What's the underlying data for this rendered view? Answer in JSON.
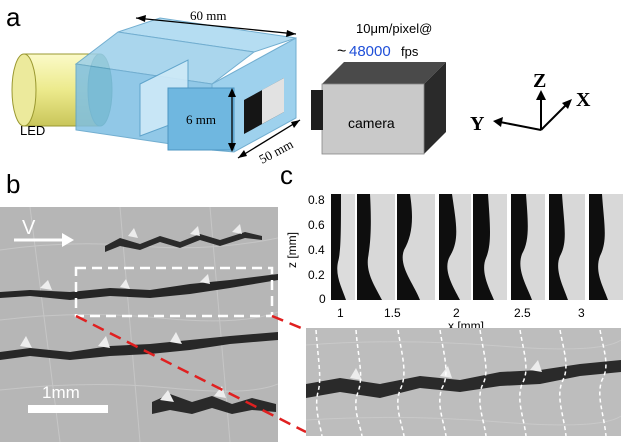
{
  "panels": {
    "a": "a",
    "b": "b",
    "c": "c"
  },
  "setup": {
    "dim_length": "60 mm",
    "dim_height": "6 mm",
    "dim_depth": "50 mm",
    "led_label": "LED",
    "camera_label": "camera",
    "resolution": "10μm/pixel@",
    "tilde": "~",
    "fps_value": "48000",
    "fps_unit": "fps"
  },
  "axes3d": {
    "z": "Z",
    "x": "X",
    "y": "Y"
  },
  "panel_b": {
    "velocity_label": "V",
    "scale_label": "1mm"
  },
  "panel_c": {
    "y_axis_label": "z [mm]",
    "y_ticks": [
      "0.8",
      "0.6",
      "0.4",
      "0.2",
      "0"
    ],
    "x_axis_label": "x [mm]",
    "x_ticks": [
      "1",
      "1.5",
      "2",
      "2.5",
      "3"
    ]
  },
  "colors": {
    "box_fill": "#8cc8e8",
    "led_yellow": "#f0ee9a",
    "velocity_arrow": "#ffffff",
    "zoom_outline": "#ffffff",
    "zoom_connector": "#e02020",
    "fps_highlight": "#1f4fd8"
  }
}
